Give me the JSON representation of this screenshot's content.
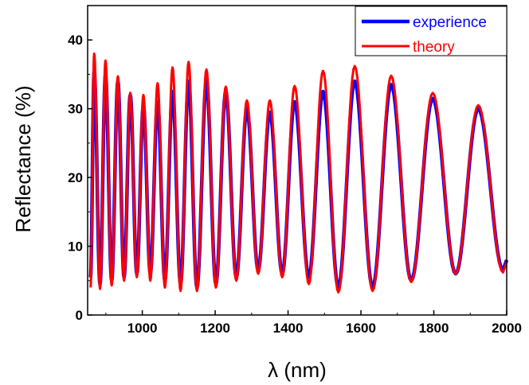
{
  "chart_data": {
    "type": "line",
    "title": "",
    "xlabel": "λ (nm)",
    "ylabel": "Reflectance (%)",
    "xlim": [
      850,
      2000
    ],
    "ylim": [
      0,
      45
    ],
    "xticks": [
      "1000",
      "1200",
      "1400",
      "1600",
      "1800",
      "2000"
    ],
    "yticks": [
      "0",
      "10",
      "20",
      "30",
      "40"
    ],
    "grid": false,
    "legend_position": "top-right",
    "series": [
      {
        "name": "experience",
        "color": "#0000ff",
        "peaks": [
          [
            868,
            35.5
          ],
          [
            899,
            35.0
          ],
          [
            933,
            34.0
          ],
          [
            967,
            32.0
          ],
          [
            1003,
            30.5
          ],
          [
            1042,
            31.0
          ],
          [
            1083,
            32.5
          ],
          [
            1127,
            34.0
          ],
          [
            1176,
            34.0
          ],
          [
            1229,
            32.5
          ],
          [
            1287,
            30.0
          ],
          [
            1350,
            29.5
          ],
          [
            1418,
            31.0
          ],
          [
            1496,
            32.5
          ],
          [
            1583,
            34.0
          ],
          [
            1683,
            33.5
          ],
          [
            1797,
            31.5
          ],
          [
            1922,
            30.0
          ]
        ],
        "troughs": [
          [
            858,
            5.5
          ],
          [
            884,
            4.5
          ],
          [
            916,
            5.0
          ],
          [
            950,
            5.5
          ],
          [
            985,
            6.0
          ],
          [
            1022,
            6.0
          ],
          [
            1062,
            5.0
          ],
          [
            1105,
            4.5
          ],
          [
            1150,
            4.0
          ],
          [
            1202,
            4.5
          ],
          [
            1258,
            5.5
          ],
          [
            1318,
            6.5
          ],
          [
            1384,
            6.0
          ],
          [
            1457,
            5.5
          ],
          [
            1538,
            4.0
          ],
          [
            1632,
            4.0
          ],
          [
            1738,
            5.0
          ],
          [
            1860,
            6.0
          ],
          [
            1990,
            6.5
          ]
        ]
      },
      {
        "name": "theory",
        "color": "#ff0000",
        "peaks": [
          [
            868,
            38.0
          ],
          [
            899,
            37.0
          ],
          [
            933,
            34.7
          ],
          [
            967,
            32.3
          ],
          [
            1003,
            32.0
          ],
          [
            1042,
            33.7
          ],
          [
            1083,
            36.0
          ],
          [
            1127,
            36.8
          ],
          [
            1176,
            35.7
          ],
          [
            1229,
            33.2
          ],
          [
            1287,
            31.2
          ],
          [
            1350,
            31.2
          ],
          [
            1418,
            33.3
          ],
          [
            1496,
            35.5
          ],
          [
            1583,
            36.2
          ],
          [
            1683,
            34.8
          ],
          [
            1797,
            32.3
          ],
          [
            1922,
            30.5
          ]
        ],
        "troughs": [
          [
            858,
            4.0
          ],
          [
            884,
            3.8
          ],
          [
            916,
            4.3
          ],
          [
            950,
            5.0
          ],
          [
            985,
            5.5
          ],
          [
            1022,
            5.0
          ],
          [
            1062,
            4.0
          ],
          [
            1105,
            3.5
          ],
          [
            1150,
            3.5
          ],
          [
            1202,
            4.0
          ],
          [
            1258,
            5.0
          ],
          [
            1318,
            6.0
          ],
          [
            1384,
            5.5
          ],
          [
            1457,
            4.5
          ],
          [
            1538,
            3.3
          ],
          [
            1632,
            3.5
          ],
          [
            1738,
            4.8
          ],
          [
            1860,
            6.0
          ],
          [
            1990,
            6.2
          ]
        ]
      }
    ]
  }
}
